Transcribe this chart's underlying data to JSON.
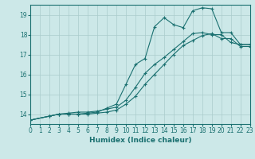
{
  "xlabel": "Humidex (Indice chaleur)",
  "ylabel": "",
  "xlim": [
    0,
    23
  ],
  "ylim": [
    13.5,
    19.5
  ],
  "xticks": [
    0,
    1,
    2,
    3,
    4,
    5,
    6,
    7,
    8,
    9,
    10,
    11,
    12,
    13,
    14,
    15,
    16,
    17,
    18,
    19,
    20,
    21,
    22,
    23
  ],
  "yticks": [
    14,
    15,
    16,
    17,
    18,
    19
  ],
  "background_color": "#cce8e8",
  "grid_color": "#aacccc",
  "line_color": "#1a7070",
  "lines": [
    {
      "x": [
        0,
        2,
        3,
        4,
        5,
        6,
        7,
        8,
        9,
        10,
        11,
        12,
        13,
        14,
        15,
        16,
        17,
        18,
        19,
        20,
        21,
        22,
        23
      ],
      "y": [
        13.7,
        13.9,
        14.0,
        14.0,
        14.0,
        14.05,
        14.1,
        14.3,
        14.5,
        15.5,
        16.5,
        16.8,
        18.4,
        18.85,
        18.5,
        18.35,
        19.2,
        19.35,
        19.3,
        18.1,
        18.1,
        17.5,
        17.5
      ],
      "marker": "+"
    },
    {
      "x": [
        0,
        2,
        3,
        4,
        5,
        6,
        7,
        8,
        9,
        10,
        11,
        12,
        13,
        14,
        15,
        16,
        17,
        18,
        19,
        20,
        21,
        22,
        23
      ],
      "y": [
        13.7,
        13.9,
        14.0,
        14.05,
        14.1,
        14.1,
        14.15,
        14.25,
        14.35,
        14.7,
        15.35,
        16.05,
        16.5,
        16.85,
        17.25,
        17.65,
        18.05,
        18.1,
        18.0,
        18.0,
        17.6,
        17.5,
        17.5
      ],
      "marker": "+"
    },
    {
      "x": [
        0,
        2,
        3,
        4,
        5,
        6,
        7,
        8,
        9,
        10,
        11,
        12,
        13,
        14,
        15,
        16,
        17,
        18,
        19,
        20,
        21,
        22,
        23
      ],
      "y": [
        13.7,
        13.9,
        14.0,
        14.0,
        14.0,
        14.0,
        14.05,
        14.1,
        14.2,
        14.5,
        14.9,
        15.5,
        16.0,
        16.5,
        17.0,
        17.45,
        17.7,
        17.95,
        18.05,
        17.8,
        17.8,
        17.4,
        17.4
      ],
      "marker": "+"
    }
  ]
}
